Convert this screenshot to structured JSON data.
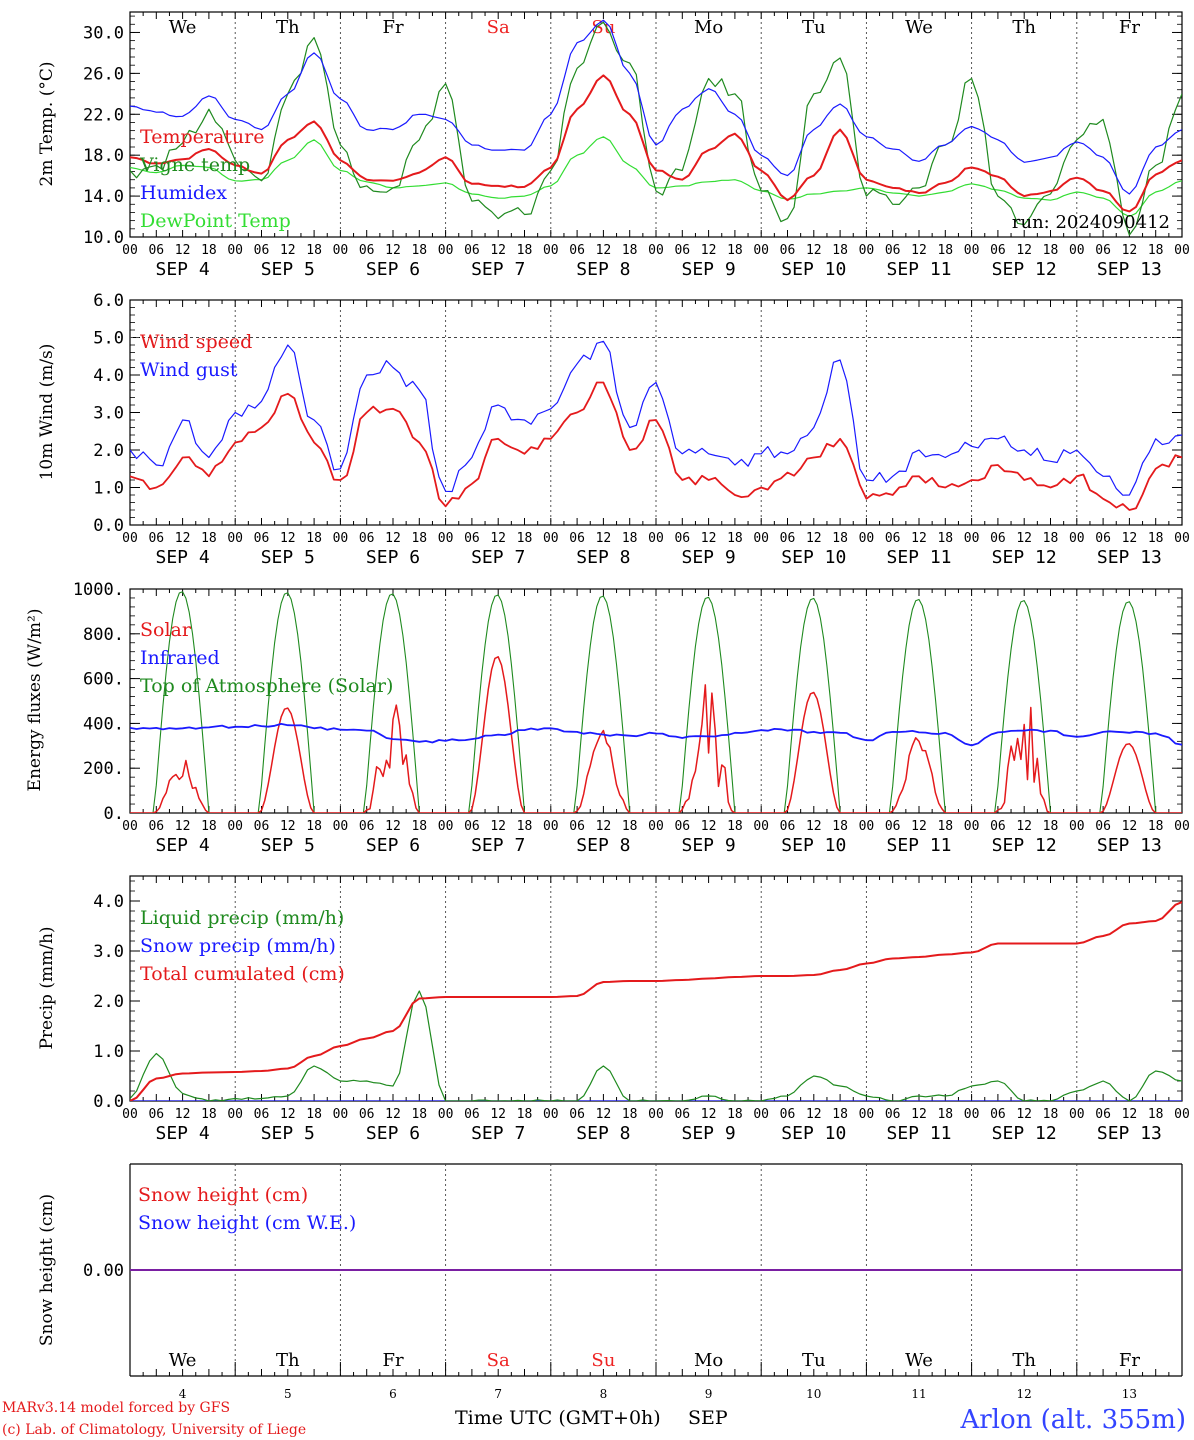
{
  "colors": {
    "red": "#e41a1c",
    "green": "#1f8a1f",
    "blue": "#1a1aff",
    "lightgreen": "#33dd33",
    "purple": "#7a1fa2",
    "weekend": "#ee2222",
    "station": "#3344ff"
  },
  "days": [
    "We",
    "Th",
    "Fr",
    "Sa",
    "Su",
    "Mo",
    "Tu",
    "We",
    "Th",
    "Fr"
  ],
  "weekend_days": [
    3,
    4
  ],
  "dates": [
    "SEP  4",
    "SEP  5",
    "SEP  6",
    "SEP  7",
    "SEP  8",
    "SEP  9",
    "SEP 10",
    "SEP 11",
    "SEP 12",
    "SEP 13"
  ],
  "hour_ticks": [
    "00",
    "06",
    "12",
    "18"
  ],
  "bottom_day_numbers": [
    "4",
    "5",
    "6",
    "7",
    "8",
    "9",
    "10",
    "11",
    "12",
    "13"
  ],
  "run_label": "run: 2024090412",
  "footer": {
    "model": "MARv3.14 model forced by GFS",
    "lab": "(c) Lab. of Climatology, University of Liege",
    "axis_title": "Time UTC (GMT+0h)",
    "month": "SEP",
    "station": "Arlon (alt. 355m)"
  },
  "chart_data": [
    {
      "id": "temp",
      "type": "line",
      "ylabel": "2m Temp. (°C)",
      "ylim": [
        10,
        32
      ],
      "yticks": [
        10,
        14,
        18,
        22,
        26,
        30
      ],
      "ytick_labels": [
        "10.0",
        "14.0",
        "18.0",
        "22.0",
        "26.0",
        "30.0"
      ],
      "x_hours": [
        0,
        6,
        12,
        18,
        24,
        30,
        36,
        42,
        48,
        54,
        60,
        66,
        72,
        78,
        84,
        90,
        96,
        102,
        108,
        114,
        120,
        126,
        132,
        138,
        144,
        150,
        156,
        162,
        168,
        174,
        180,
        186,
        192,
        198,
        204,
        210,
        216,
        222,
        228,
        234,
        240
      ],
      "series": [
        {
          "name": "Temperature",
          "color": "red",
          "values": [
            17.8,
            17.2,
            17.6,
            18.6,
            17.0,
            16.2,
            19.5,
            21.3,
            17.5,
            15.6,
            15.5,
            16.3,
            17.8,
            15.2,
            15.0,
            14.9,
            16.8,
            22.5,
            25.8,
            22.0,
            16.5,
            15.6,
            18.5,
            20.1,
            16.5,
            13.6,
            16.0,
            20.5,
            15.6,
            14.8,
            14.3,
            15.3,
            16.8,
            15.9,
            14.0,
            14.5,
            15.8,
            14.5,
            12.5,
            16.1,
            17.5
          ]
        },
        {
          "name": "Vigne temp",
          "color": "green",
          "values": [
            16.5,
            17.0,
            19.2,
            22.5,
            17.5,
            15.5,
            24.0,
            29.5,
            19.0,
            15.0,
            14.8,
            19.5,
            25.0,
            13.5,
            11.8,
            12.2,
            16.5,
            26.5,
            31.0,
            27.0,
            14.5,
            16.5,
            25.5,
            24.0,
            14.5,
            11.8,
            24.0,
            27.5,
            14.0,
            13.2,
            14.8,
            19.0,
            25.5,
            14.0,
            11.2,
            14.2,
            19.5,
            21.5,
            10.2,
            17.0,
            24.0
          ]
        },
        {
          "name": "Humidex",
          "color": "blue",
          "values": [
            22.8,
            22.2,
            21.8,
            23.8,
            21.5,
            20.5,
            24.0,
            28.0,
            23.5,
            20.5,
            20.5,
            22.0,
            21.5,
            19.0,
            18.5,
            18.5,
            22.0,
            29.0,
            31.2,
            26.0,
            19.0,
            22.5,
            24.5,
            22.0,
            18.0,
            16.0,
            20.5,
            23.0,
            19.8,
            18.6,
            17.4,
            19.0,
            20.8,
            19.5,
            17.3,
            17.8,
            19.3,
            17.8,
            14.2,
            18.8,
            20.5
          ]
        },
        {
          "name": "DewPoint Temp",
          "color": "lightgreen",
          "values": [
            16.8,
            16.3,
            17.0,
            16.8,
            15.5,
            15.6,
            17.5,
            19.5,
            16.5,
            15.4,
            14.8,
            15.0,
            15.3,
            14.2,
            13.8,
            14.0,
            15.0,
            18.0,
            19.8,
            17.0,
            14.8,
            15.0,
            15.4,
            15.6,
            14.5,
            13.7,
            14.2,
            14.5,
            14.8,
            14.3,
            14.0,
            14.4,
            15.2,
            14.6,
            13.8,
            13.6,
            14.4,
            13.8,
            12.0,
            14.4,
            15.5
          ]
        }
      ],
      "legend": [
        "Temperature",
        "Vigne temp",
        "Humidex",
        "DewPoint Temp"
      ],
      "grid": "vertical day lines dotted"
    },
    {
      "id": "wind",
      "type": "line",
      "ylabel": "10m Wind (m/s)",
      "ylim": [
        0,
        6
      ],
      "yticks": [
        0,
        1,
        2,
        3,
        4,
        5,
        6
      ],
      "ytick_labels": [
        "0.0",
        "1.0",
        "2.0",
        "3.0",
        "4.0",
        "5.0",
        "6.0"
      ],
      "reference_line": 5.0,
      "x_hours": [
        0,
        6,
        12,
        18,
        24,
        30,
        36,
        42,
        48,
        54,
        60,
        66,
        72,
        78,
        84,
        90,
        96,
        102,
        108,
        114,
        120,
        126,
        132,
        138,
        144,
        150,
        156,
        162,
        168,
        174,
        180,
        186,
        192,
        198,
        204,
        210,
        216,
        222,
        228,
        234,
        240
      ],
      "series": [
        {
          "name": "Wind speed",
          "color": "red",
          "values": [
            1.3,
            1.0,
            1.8,
            1.3,
            2.2,
            2.6,
            3.5,
            2.2,
            1.2,
            3.0,
            3.1,
            2.2,
            0.5,
            1.1,
            2.3,
            1.9,
            2.3,
            3.0,
            3.8,
            2.0,
            2.8,
            1.2,
            1.2,
            0.8,
            1.0,
            1.4,
            1.8,
            2.3,
            0.7,
            0.8,
            1.3,
            1.0,
            1.2,
            1.6,
            1.2,
            1.0,
            1.3,
            0.7,
            0.4,
            1.5,
            1.8
          ]
        },
        {
          "name": "Wind gust",
          "color": "blue",
          "values": [
            2.0,
            1.6,
            2.8,
            1.8,
            3.0,
            3.3,
            4.8,
            2.8,
            1.5,
            4.0,
            4.2,
            3.6,
            0.9,
            1.8,
            3.2,
            2.8,
            3.1,
            4.3,
            4.9,
            2.6,
            3.8,
            1.9,
            1.9,
            1.6,
            1.9,
            1.9,
            2.6,
            4.4,
            1.2,
            1.3,
            2.0,
            1.8,
            2.1,
            2.3,
            2.0,
            1.7,
            2.0,
            1.3,
            0.8,
            2.3,
            2.4
          ]
        }
      ],
      "legend": [
        "Wind speed",
        "Wind gust"
      ]
    },
    {
      "id": "energy",
      "type": "line",
      "ylabel": "Energy fluxes (W/m²)",
      "ylim": [
        0,
        1000
      ],
      "yticks": [
        0,
        200,
        400,
        600,
        800,
        1000
      ],
      "ytick_labels": [
        "0.",
        "200.",
        "400.",
        "600.",
        "800.",
        "1000."
      ],
      "toa_peak_daily": [
        990,
        985,
        980,
        975,
        970,
        965,
        960,
        955,
        950,
        945
      ],
      "solar_peak_daily": [
        250,
        470,
        560,
        700,
        380,
        650,
        540,
        370,
        570,
        310
      ],
      "infrared_values": [
        380,
        380,
        378,
        382,
        385,
        388,
        392,
        378,
        372,
        368,
        330,
        318,
        322,
        330,
        350,
        370,
        378,
        362,
        350,
        345,
        355,
        335,
        342,
        358,
        370,
        368,
        362,
        358,
        325,
        362,
        360,
        358,
        302,
        360,
        368,
        368,
        340,
        362,
        358,
        356,
        305
      ],
      "series_names": [
        "Solar",
        "Infrared",
        "Top of Atmosphere (Solar)"
      ],
      "legend": [
        "Solar",
        "Infrared",
        "Top of Atmosphere (Solar)"
      ]
    },
    {
      "id": "precip",
      "type": "line",
      "ylabel": "Precip (mm/h)",
      "ylim": [
        0,
        4.5
      ],
      "yticks": [
        0,
        1,
        2,
        3,
        4
      ],
      "ytick_labels": [
        "0.0",
        "1.0",
        "2.0",
        "3.0",
        "4.0"
      ],
      "x_hours": [
        0,
        6,
        12,
        18,
        24,
        30,
        36,
        42,
        48,
        54,
        60,
        66,
        72,
        78,
        84,
        90,
        96,
        102,
        108,
        114,
        120,
        126,
        132,
        138,
        144,
        150,
        156,
        162,
        168,
        174,
        180,
        186,
        192,
        198,
        204,
        210,
        216,
        222,
        228,
        234,
        240
      ],
      "series": [
        {
          "name": "Liquid precip (mm/h)",
          "color": "green",
          "values": [
            0.05,
            0.95,
            0.15,
            0.0,
            0.05,
            0.05,
            0.1,
            0.7,
            0.4,
            0.4,
            0.3,
            2.2,
            0.0,
            0.0,
            0.0,
            0.0,
            0.0,
            0.0,
            0.7,
            0.0,
            0.0,
            0.0,
            0.1,
            0.0,
            0.0,
            0.1,
            0.5,
            0.3,
            0.1,
            0.0,
            0.1,
            0.1,
            0.3,
            0.4,
            0.0,
            0.0,
            0.2,
            0.4,
            0.0,
            0.6,
            0.4
          ]
        },
        {
          "name": "Snow precip (mm/h)",
          "color": "blue",
          "values": [
            0,
            0,
            0,
            0,
            0,
            0,
            0,
            0,
            0,
            0,
            0,
            0,
            0,
            0,
            0,
            0,
            0,
            0,
            0,
            0,
            0,
            0,
            0,
            0,
            0,
            0,
            0,
            0,
            0,
            0,
            0,
            0,
            0,
            0,
            0,
            0,
            0,
            0,
            0,
            0,
            0
          ]
        },
        {
          "name": "Total cumulated (cm)",
          "color": "red",
          "values": [
            0.0,
            0.45,
            0.55,
            0.57,
            0.58,
            0.6,
            0.65,
            0.9,
            1.1,
            1.25,
            1.4,
            2.05,
            2.08,
            2.08,
            2.08,
            2.08,
            2.08,
            2.1,
            2.38,
            2.4,
            2.4,
            2.42,
            2.45,
            2.48,
            2.5,
            2.5,
            2.52,
            2.62,
            2.75,
            2.85,
            2.88,
            2.93,
            2.97,
            3.15,
            3.15,
            3.15,
            3.15,
            3.3,
            3.55,
            3.6,
            3.98
          ]
        }
      ],
      "legend": [
        "Liquid precip (mm/h)",
        "Snow precip (mm/h)",
        "Total cumulated (cm)"
      ]
    },
    {
      "id": "snow",
      "type": "line",
      "ylabel": "Snow height (cm)",
      "ytick_labels": [
        "0.00"
      ],
      "series": [
        {
          "name": "Snow height (cm)",
          "color": "red",
          "value": 0.0
        },
        {
          "name": "Snow height (cm W.E.)",
          "color": "blue",
          "value": 0.0
        }
      ],
      "legend": [
        "Snow height (cm)",
        "Snow height (cm W.E.)"
      ]
    }
  ]
}
